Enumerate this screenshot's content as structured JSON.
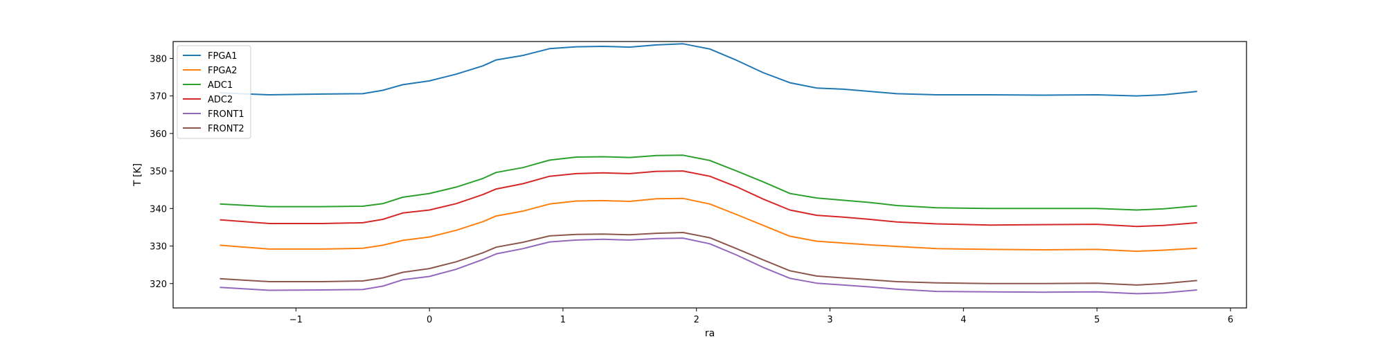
{
  "chart_data": {
    "type": "line",
    "title": "",
    "xlabel": "ra",
    "ylabel": "T [K]",
    "xlim": [
      -1.92,
      6.12
    ],
    "ylim": [
      313.5,
      384.5
    ],
    "xticks": [
      -1,
      0,
      1,
      2,
      3,
      4,
      5,
      6
    ],
    "yticks": [
      320,
      330,
      340,
      350,
      360,
      370,
      380
    ],
    "grid": false,
    "legend_position": "top-left",
    "x": [
      -1.57,
      -1.2,
      -0.8,
      -0.5,
      -0.35,
      -0.2,
      0.0,
      0.2,
      0.4,
      0.5,
      0.7,
      0.9,
      1.1,
      1.3,
      1.5,
      1.7,
      1.9,
      2.1,
      2.3,
      2.5,
      2.7,
      2.9,
      3.1,
      3.3,
      3.5,
      3.8,
      4.2,
      4.6,
      5.0,
      5.3,
      5.5,
      5.75
    ],
    "series": [
      {
        "name": "FPGA1",
        "color": "#1f77b4",
        "values": [
          370.8,
          370.3,
          370.5,
          370.6,
          371.5,
          373.0,
          374.0,
          375.8,
          378.0,
          379.6,
          380.8,
          382.6,
          383.1,
          383.2,
          383.0,
          383.6,
          383.9,
          382.5,
          379.5,
          376.2,
          373.5,
          372.1,
          371.8,
          371.2,
          370.6,
          370.3,
          370.3,
          370.2,
          370.3,
          370.0,
          370.3,
          371.2
        ]
      },
      {
        "name": "FPGA2",
        "color": "#ff7f0e",
        "values": [
          330.2,
          329.2,
          329.2,
          329.4,
          330.2,
          331.5,
          332.4,
          334.2,
          336.5,
          338.0,
          339.3,
          341.2,
          342.0,
          342.1,
          341.9,
          342.6,
          342.7,
          341.2,
          338.4,
          335.5,
          332.6,
          331.3,
          330.8,
          330.3,
          329.9,
          329.3,
          329.1,
          329.0,
          329.1,
          328.6,
          328.9,
          329.4
        ]
      },
      {
        "name": "ADC1",
        "color": "#2ca02c",
        "values": [
          341.2,
          340.5,
          340.5,
          340.6,
          341.3,
          343.0,
          344.0,
          345.7,
          348.0,
          349.6,
          350.9,
          352.9,
          353.7,
          353.8,
          353.6,
          354.1,
          354.2,
          352.8,
          350.0,
          347.1,
          344.0,
          342.8,
          342.2,
          341.6,
          340.8,
          340.2,
          340.0,
          340.0,
          340.0,
          339.6,
          339.9,
          340.7
        ]
      },
      {
        "name": "ADC2",
        "color": "#d62728",
        "values": [
          337.0,
          336.0,
          336.0,
          336.2,
          337.1,
          338.8,
          339.6,
          341.3,
          343.7,
          345.2,
          346.6,
          348.6,
          349.3,
          349.5,
          349.3,
          349.9,
          350.0,
          348.6,
          345.8,
          342.5,
          339.6,
          338.2,
          337.7,
          337.1,
          336.4,
          335.9,
          335.6,
          335.7,
          335.8,
          335.2,
          335.5,
          336.2
        ]
      },
      {
        "name": "FRONT1",
        "color": "#9467bd",
        "values": [
          319.0,
          318.2,
          318.3,
          318.4,
          319.3,
          321.0,
          321.9,
          323.8,
          326.4,
          327.9,
          329.3,
          331.1,
          331.6,
          331.8,
          331.6,
          332.0,
          332.1,
          330.6,
          327.6,
          324.3,
          321.4,
          320.1,
          319.6,
          319.1,
          318.5,
          317.9,
          317.8,
          317.7,
          317.8,
          317.3,
          317.5,
          318.3
        ]
      },
      {
        "name": "FRONT2",
        "color": "#8c564b",
        "values": [
          321.3,
          320.5,
          320.5,
          320.7,
          321.5,
          323.0,
          324.0,
          325.8,
          328.2,
          329.7,
          331.0,
          332.7,
          333.1,
          333.2,
          333.0,
          333.4,
          333.6,
          332.2,
          329.3,
          326.3,
          323.4,
          322.0,
          321.5,
          321.0,
          320.5,
          320.2,
          320.0,
          320.0,
          320.1,
          319.6,
          320.0,
          320.8
        ]
      }
    ]
  }
}
